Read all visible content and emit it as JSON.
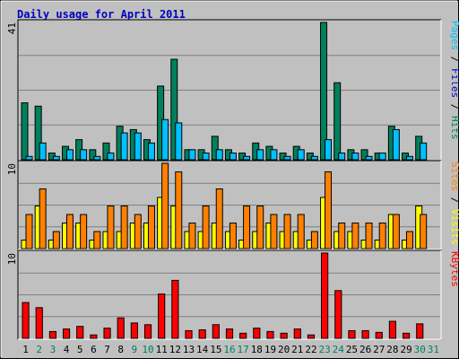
{
  "colors": {
    "background": "#c0c0c0",
    "plot_bg": "#c0c0c0",
    "grid": "#808080",
    "border_dark": "#000000",
    "border_light": "#ffffff",
    "title": "#0000c0",
    "hits": "#00805c",
    "files": "#00c0ff",
    "pages": "#00c0ff",
    "visits": "#ffff00",
    "sites": "#ff8000",
    "kbytes": "#ff0000",
    "weekend_day": "#00805c",
    "weekday": "#000000"
  },
  "chart_data": [
    {
      "type": "bar",
      "title": "Daily usage for April 2011",
      "ylabel_parts": [
        {
          "text": "Pages",
          "color": "#00c0ff"
        },
        {
          "text": " / ",
          "color": "#000000"
        },
        {
          "text": "Files",
          "color": "#0000c0"
        },
        {
          "text": " / ",
          "color": "#000000"
        },
        {
          "text": "Hits",
          "color": "#00805c"
        }
      ],
      "ymax_label": "41",
      "ylim": [
        0,
        41
      ],
      "categories": [
        "1",
        "2",
        "3",
        "4",
        "5",
        "6",
        "7",
        "8",
        "9",
        "10",
        "11",
        "12",
        "13",
        "14",
        "15",
        "16",
        "17",
        "18",
        "19",
        "20",
        "21",
        "22",
        "23",
        "24",
        "25",
        "26",
        "27",
        "28",
        "29",
        "30",
        "31"
      ],
      "weekend": [
        2,
        3,
        9,
        10,
        16,
        17,
        23,
        24,
        30,
        31
      ],
      "series": [
        {
          "name": "Hits",
          "values": [
            17,
            16,
            2,
            4,
            6,
            3,
            5,
            10,
            9,
            6,
            22,
            30,
            3,
            3,
            7,
            3,
            2,
            5,
            4,
            2,
            4,
            2,
            41,
            23,
            3,
            3,
            2,
            10,
            2,
            7,
            0
          ]
        },
        {
          "name": "Files",
          "values": [
            1,
            5,
            1,
            3,
            3,
            1,
            2,
            8,
            8,
            5,
            12,
            11,
            3,
            2,
            3,
            2,
            1,
            3,
            3,
            1,
            3,
            1,
            6,
            2,
            2,
            1,
            2,
            9,
            1,
            5,
            0
          ]
        }
      ],
      "grid": true
    },
    {
      "type": "bar",
      "ylabel_parts": [
        {
          "text": "Sites",
          "color": "#ff8000"
        },
        {
          "text": " / ",
          "color": "#000000"
        },
        {
          "text": "Visits",
          "color": "#ffff00"
        }
      ],
      "ymax_label": "10",
      "ylim": [
        0,
        10
      ],
      "categories": [
        "1",
        "2",
        "3",
        "4",
        "5",
        "6",
        "7",
        "8",
        "9",
        "10",
        "11",
        "12",
        "13",
        "14",
        "15",
        "16",
        "17",
        "18",
        "19",
        "20",
        "21",
        "22",
        "23",
        "24",
        "25",
        "26",
        "27",
        "28",
        "29",
        "30",
        "31"
      ],
      "series": [
        {
          "name": "Visits",
          "values": [
            1,
            5,
            1,
            3,
            3,
            1,
            2,
            2,
            3,
            3,
            6,
            5,
            2,
            2,
            3,
            2,
            1,
            2,
            3,
            2,
            2,
            1,
            6,
            2,
            2,
            1,
            1,
            4,
            1,
            5,
            0
          ]
        },
        {
          "name": "Sites",
          "values": [
            4,
            7,
            2,
            4,
            4,
            2,
            5,
            5,
            4,
            5,
            10,
            9,
            3,
            5,
            7,
            3,
            5,
            5,
            4,
            4,
            4,
            2,
            9,
            3,
            3,
            3,
            3,
            4,
            2,
            4,
            0
          ]
        }
      ],
      "grid": true
    },
    {
      "type": "bar",
      "ylabel_parts": [
        {
          "text": "KBytes",
          "color": "#ff0000"
        }
      ],
      "ymax_label": "10",
      "ylim": [
        0,
        10
      ],
      "categories": [
        "1",
        "2",
        "3",
        "4",
        "5",
        "6",
        "7",
        "8",
        "9",
        "10",
        "11",
        "12",
        "13",
        "14",
        "15",
        "16",
        "17",
        "18",
        "19",
        "20",
        "21",
        "22",
        "23",
        "24",
        "25",
        "26",
        "27",
        "28",
        "29",
        "30",
        "31"
      ],
      "series": [
        {
          "name": "KBytes",
          "values": [
            4.2,
            3.6,
            0.8,
            1.1,
            1.4,
            0.4,
            1.2,
            2.4,
            1.8,
            1.6,
            5.2,
            6.8,
            0.9,
            1.0,
            1.6,
            1.1,
            0.6,
            1.2,
            0.8,
            0.6,
            1.1,
            0.4,
            10,
            5.6,
            0.9,
            0.9,
            0.7,
            2.0,
            0.6,
            1.7,
            0
          ]
        }
      ],
      "grid": true
    }
  ]
}
